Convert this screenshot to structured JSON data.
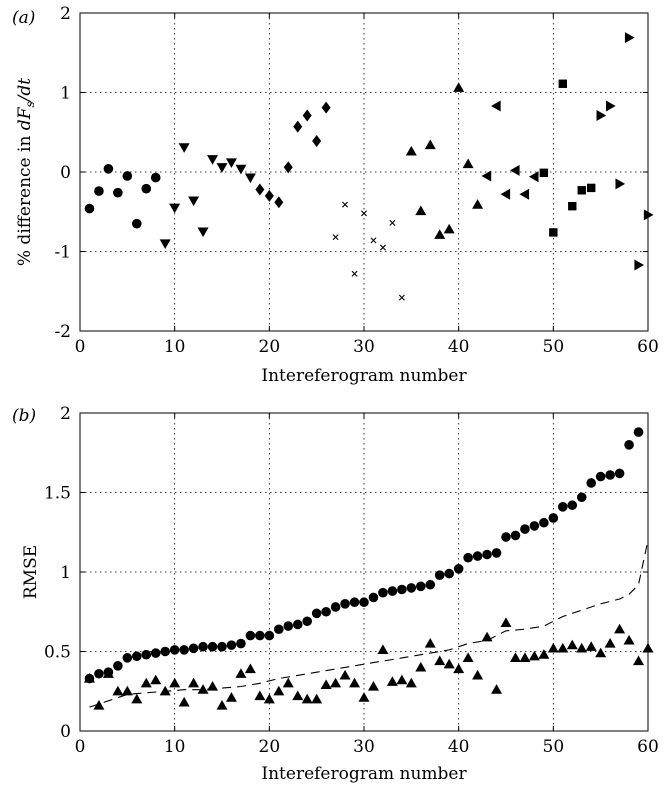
{
  "chart_data": [
    {
      "type": "scatter",
      "panel_label": "(a)",
      "xlabel": "Intereferogram number",
      "ylabel": "% difference in dF_s/dt",
      "ylabel_parts": {
        "prefix": "% difference in ",
        "d1": "dF",
        "sub": "s",
        "d2": "/dt"
      },
      "xlim": [
        0,
        60
      ],
      "ylim": [
        -2,
        2
      ],
      "xticks": [
        0,
        10,
        20,
        30,
        40,
        50,
        60
      ],
      "yticks": [
        -2,
        -1,
        0,
        1,
        2
      ],
      "grid": true,
      "series": [
        {
          "marker": "circle",
          "x": [
            1,
            2,
            3,
            4,
            5,
            6,
            7,
            8
          ],
          "y": [
            -0.46,
            -0.24,
            0.04,
            -0.26,
            -0.05,
            -0.65,
            -0.21,
            -0.07
          ]
        },
        {
          "marker": "triangle-down",
          "x": [
            9,
            10,
            11,
            12,
            13,
            14,
            15,
            16,
            17,
            18
          ],
          "y": [
            -0.9,
            -0.45,
            0.31,
            -0.36,
            -0.75,
            0.16,
            0.06,
            0.12,
            0.04,
            -0.07
          ]
        },
        {
          "marker": "diamond",
          "x": [
            19,
            20,
            21,
            22,
            23,
            24,
            25,
            26
          ],
          "y": [
            -0.22,
            -0.3,
            -0.38,
            0.06,
            0.57,
            0.71,
            0.39,
            0.81
          ]
        },
        {
          "marker": "cross",
          "x": [
            27,
            28,
            29,
            30,
            31,
            32,
            33,
            34
          ],
          "y": [
            -0.82,
            -0.41,
            -1.28,
            -0.52,
            -0.86,
            -0.95,
            -0.64,
            -1.58
          ]
        },
        {
          "marker": "triangle-up",
          "x": [
            35,
            36,
            37,
            38,
            39,
            40,
            41,
            42
          ],
          "y": [
            0.26,
            -0.49,
            0.34,
            -0.79,
            -0.72,
            1.06,
            0.1,
            -0.41
          ]
        },
        {
          "marker": "triangle-left",
          "x": [
            43,
            44,
            45,
            46,
            47,
            48
          ],
          "y": [
            -0.05,
            0.83,
            -0.28,
            0.02,
            -0.28,
            -0.06
          ]
        },
        {
          "marker": "square",
          "x": [
            49,
            50,
            51,
            52,
            53,
            54
          ],
          "y": [
            -0.01,
            -0.76,
            1.11,
            -0.43,
            -0.23,
            -0.2
          ]
        },
        {
          "marker": "triangle-right",
          "x": [
            55,
            56,
            57,
            58,
            59,
            60
          ],
          "y": [
            0.71,
            0.83,
            -0.15,
            1.69,
            -1.17,
            -0.54
          ]
        }
      ]
    },
    {
      "type": "scatter",
      "panel_label": "(b)",
      "xlabel": "Intereferogram number",
      "ylabel": "RMSE",
      "xlim": [
        0,
        60
      ],
      "ylim": [
        0,
        2
      ],
      "xticks": [
        0,
        10,
        20,
        30,
        40,
        50,
        60
      ],
      "yticks": [
        0,
        0.5,
        1,
        1.5,
        2
      ],
      "ytick_labels": [
        "0",
        "0.5",
        "1",
        "1.5",
        "2"
      ],
      "grid": true,
      "series": [
        {
          "marker": "circle",
          "x": [
            1,
            2,
            3,
            4,
            5,
            6,
            7,
            8,
            9,
            10,
            11,
            12,
            13,
            14,
            15,
            16,
            17,
            18,
            19,
            20,
            21,
            22,
            23,
            24,
            25,
            26,
            27,
            28,
            29,
            30,
            31,
            32,
            33,
            34,
            35,
            36,
            37,
            38,
            39,
            40,
            41,
            42,
            43,
            44,
            45,
            46,
            47,
            48,
            49,
            50,
            51,
            52,
            53,
            54,
            55,
            56,
            57,
            58,
            59
          ],
          "y": [
            0.33,
            0.36,
            0.37,
            0.41,
            0.46,
            0.47,
            0.48,
            0.49,
            0.5,
            0.51,
            0.51,
            0.52,
            0.53,
            0.53,
            0.53,
            0.54,
            0.55,
            0.6,
            0.6,
            0.6,
            0.64,
            0.66,
            0.67,
            0.69,
            0.74,
            0.75,
            0.78,
            0.8,
            0.81,
            0.81,
            0.84,
            0.87,
            0.88,
            0.89,
            0.9,
            0.91,
            0.92,
            0.98,
            0.99,
            1.02,
            1.09,
            1.1,
            1.11,
            1.12,
            1.22,
            1.23,
            1.27,
            1.29,
            1.31,
            1.34,
            1.41,
            1.42,
            1.47,
            1.56,
            1.6,
            1.61,
            1.62,
            1.8,
            1.88
          ]
        },
        {
          "marker": "triangle-up",
          "x": [
            1,
            2,
            3,
            4,
            5,
            6,
            7,
            8,
            9,
            10,
            11,
            12,
            13,
            14,
            15,
            16,
            17,
            18,
            19,
            20,
            21,
            22,
            23,
            24,
            25,
            26,
            27,
            28,
            29,
            30,
            31,
            32,
            33,
            34,
            35,
            36,
            37,
            38,
            39,
            40,
            41,
            42,
            43,
            44,
            45,
            46,
            47,
            48,
            49,
            50,
            51,
            52,
            53,
            54,
            55,
            56,
            57,
            58,
            59,
            60
          ],
          "y": [
            0.33,
            0.16,
            0.36,
            0.25,
            0.25,
            0.2,
            0.3,
            0.32,
            0.25,
            0.3,
            0.18,
            0.3,
            0.26,
            0.28,
            0.16,
            0.21,
            0.36,
            0.39,
            0.22,
            0.2,
            0.25,
            0.3,
            0.22,
            0.2,
            0.2,
            0.29,
            0.3,
            0.35,
            0.3,
            0.21,
            0.28,
            0.51,
            0.31,
            0.32,
            0.3,
            0.4,
            0.55,
            0.44,
            0.42,
            0.39,
            0.46,
            0.35,
            0.59,
            0.26,
            0.68,
            0.46,
            0.46,
            0.47,
            0.48,
            0.52,
            0.52,
            0.54,
            0.52,
            0.53,
            0.49,
            0.55,
            0.64,
            0.57,
            0.44,
            0.52
          ]
        },
        {
          "style": "dashed-line",
          "x": [
            1,
            3,
            5,
            7,
            9,
            11,
            13,
            15,
            17,
            19,
            21,
            23,
            25,
            27,
            29,
            31,
            33,
            35,
            37,
            39,
            41,
            43,
            45,
            47,
            49,
            51,
            53,
            55,
            57,
            58,
            59,
            60
          ],
          "y": [
            0.15,
            0.19,
            0.23,
            0.24,
            0.25,
            0.26,
            0.26,
            0.27,
            0.28,
            0.3,
            0.33,
            0.35,
            0.37,
            0.39,
            0.41,
            0.43,
            0.45,
            0.47,
            0.49,
            0.51,
            0.55,
            0.57,
            0.63,
            0.64,
            0.66,
            0.72,
            0.76,
            0.8,
            0.83,
            0.86,
            0.92,
            1.2
          ]
        }
      ]
    }
  ]
}
